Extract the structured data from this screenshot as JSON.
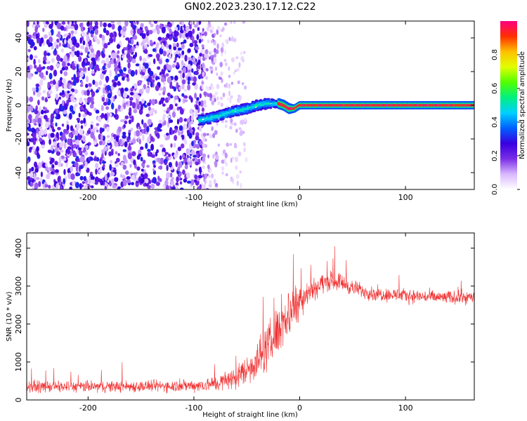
{
  "figure": {
    "title": "GN02.2023.230.17.12.C22"
  },
  "chart_data": [
    {
      "type": "heatmap",
      "xlabel": "Height of straight line (km)",
      "ylabel": "Frequency (Hz)",
      "xlim": [
        -258,
        165
      ],
      "ylim": [
        -50,
        50
      ],
      "xticks": [
        -200,
        -100,
        0,
        100
      ],
      "yticks": [
        -40,
        -20,
        0,
        20,
        40
      ],
      "colorbar": {
        "label": "Normalized spectral amplitude",
        "range": [
          0,
          1
        ],
        "ticks": [
          0.0,
          0.2,
          0.4,
          0.6,
          0.8
        ],
        "colors": [
          "#ffffff",
          "#d9b8ff",
          "#7a2ee6",
          "#3a00e0",
          "#0060ff",
          "#00d0ff",
          "#00f080",
          "#50ff00",
          "#e0ff00",
          "#ffc000",
          "#ff3000",
          "#ff0080"
        ]
      },
      "regions": [
        {
          "x_range": [
            -258,
            -92
          ],
          "value_range": [
            0.05,
            0.32
          ],
          "coverage": "full band"
        },
        {
          "x_range": [
            -92,
            -50
          ],
          "value_range": [
            0.03,
            0.18
          ],
          "coverage": "sparse"
        },
        {
          "x_range": [
            -95,
            -20
          ],
          "value_range": [
            0.3,
            0.5
          ],
          "coverage": "narrow ridge"
        },
        {
          "x_range": [
            -20,
            165
          ],
          "value_range": [
            0.9,
            1.0
          ],
          "coverage": "narrow line"
        }
      ],
      "ridge": {
        "x": [
          -95,
          -80,
          -65,
          -50,
          -40,
          -30,
          -25,
          -20,
          -15,
          -10,
          -5,
          0,
          50,
          100,
          165
        ],
        "y": [
          -9,
          -7,
          -4,
          -2,
          0,
          1,
          1,
          1,
          0,
          -2,
          -2,
          0,
          0,
          0,
          0
        ],
        "halfwidth_hz": [
          3,
          3,
          3,
          3,
          3,
          3,
          2.5,
          2,
          2,
          2,
          1.5,
          1.5,
          1.5,
          1.5,
          1.5
        ]
      }
    },
    {
      "type": "line",
      "xlabel": "Height of straight line (km)",
      "ylabel": "SNR (10 * v/v)",
      "xlim": [
        -258,
        165
      ],
      "ylim": [
        0,
        4400
      ],
      "xticks": [
        -200,
        -100,
        0,
        100
      ],
      "yticks": [
        0,
        1000,
        2000,
        3000,
        4000
      ],
      "line_color": "#f03030",
      "series": [
        {
          "x": [
            -258,
            -200,
            -150,
            -100,
            -80,
            -60,
            -50,
            -40,
            -30,
            -20,
            -10,
            -5,
            0,
            10,
            20,
            30,
            40,
            50,
            70,
            100,
            130,
            165
          ],
          "y": [
            350,
            350,
            360,
            380,
            420,
            600,
            800,
            1050,
            1400,
            1850,
            2300,
            2500,
            2650,
            2900,
            3050,
            3150,
            3100,
            2950,
            2800,
            2750,
            2700,
            2700
          ],
          "noise_amplitude": [
            220,
            220,
            230,
            240,
            300,
            450,
            600,
            750,
            900,
            1000,
            1000,
            900,
            700,
            500,
            400,
            350,
            350,
            300,
            280,
            270,
            260,
            260
          ]
        }
      ]
    }
  ]
}
